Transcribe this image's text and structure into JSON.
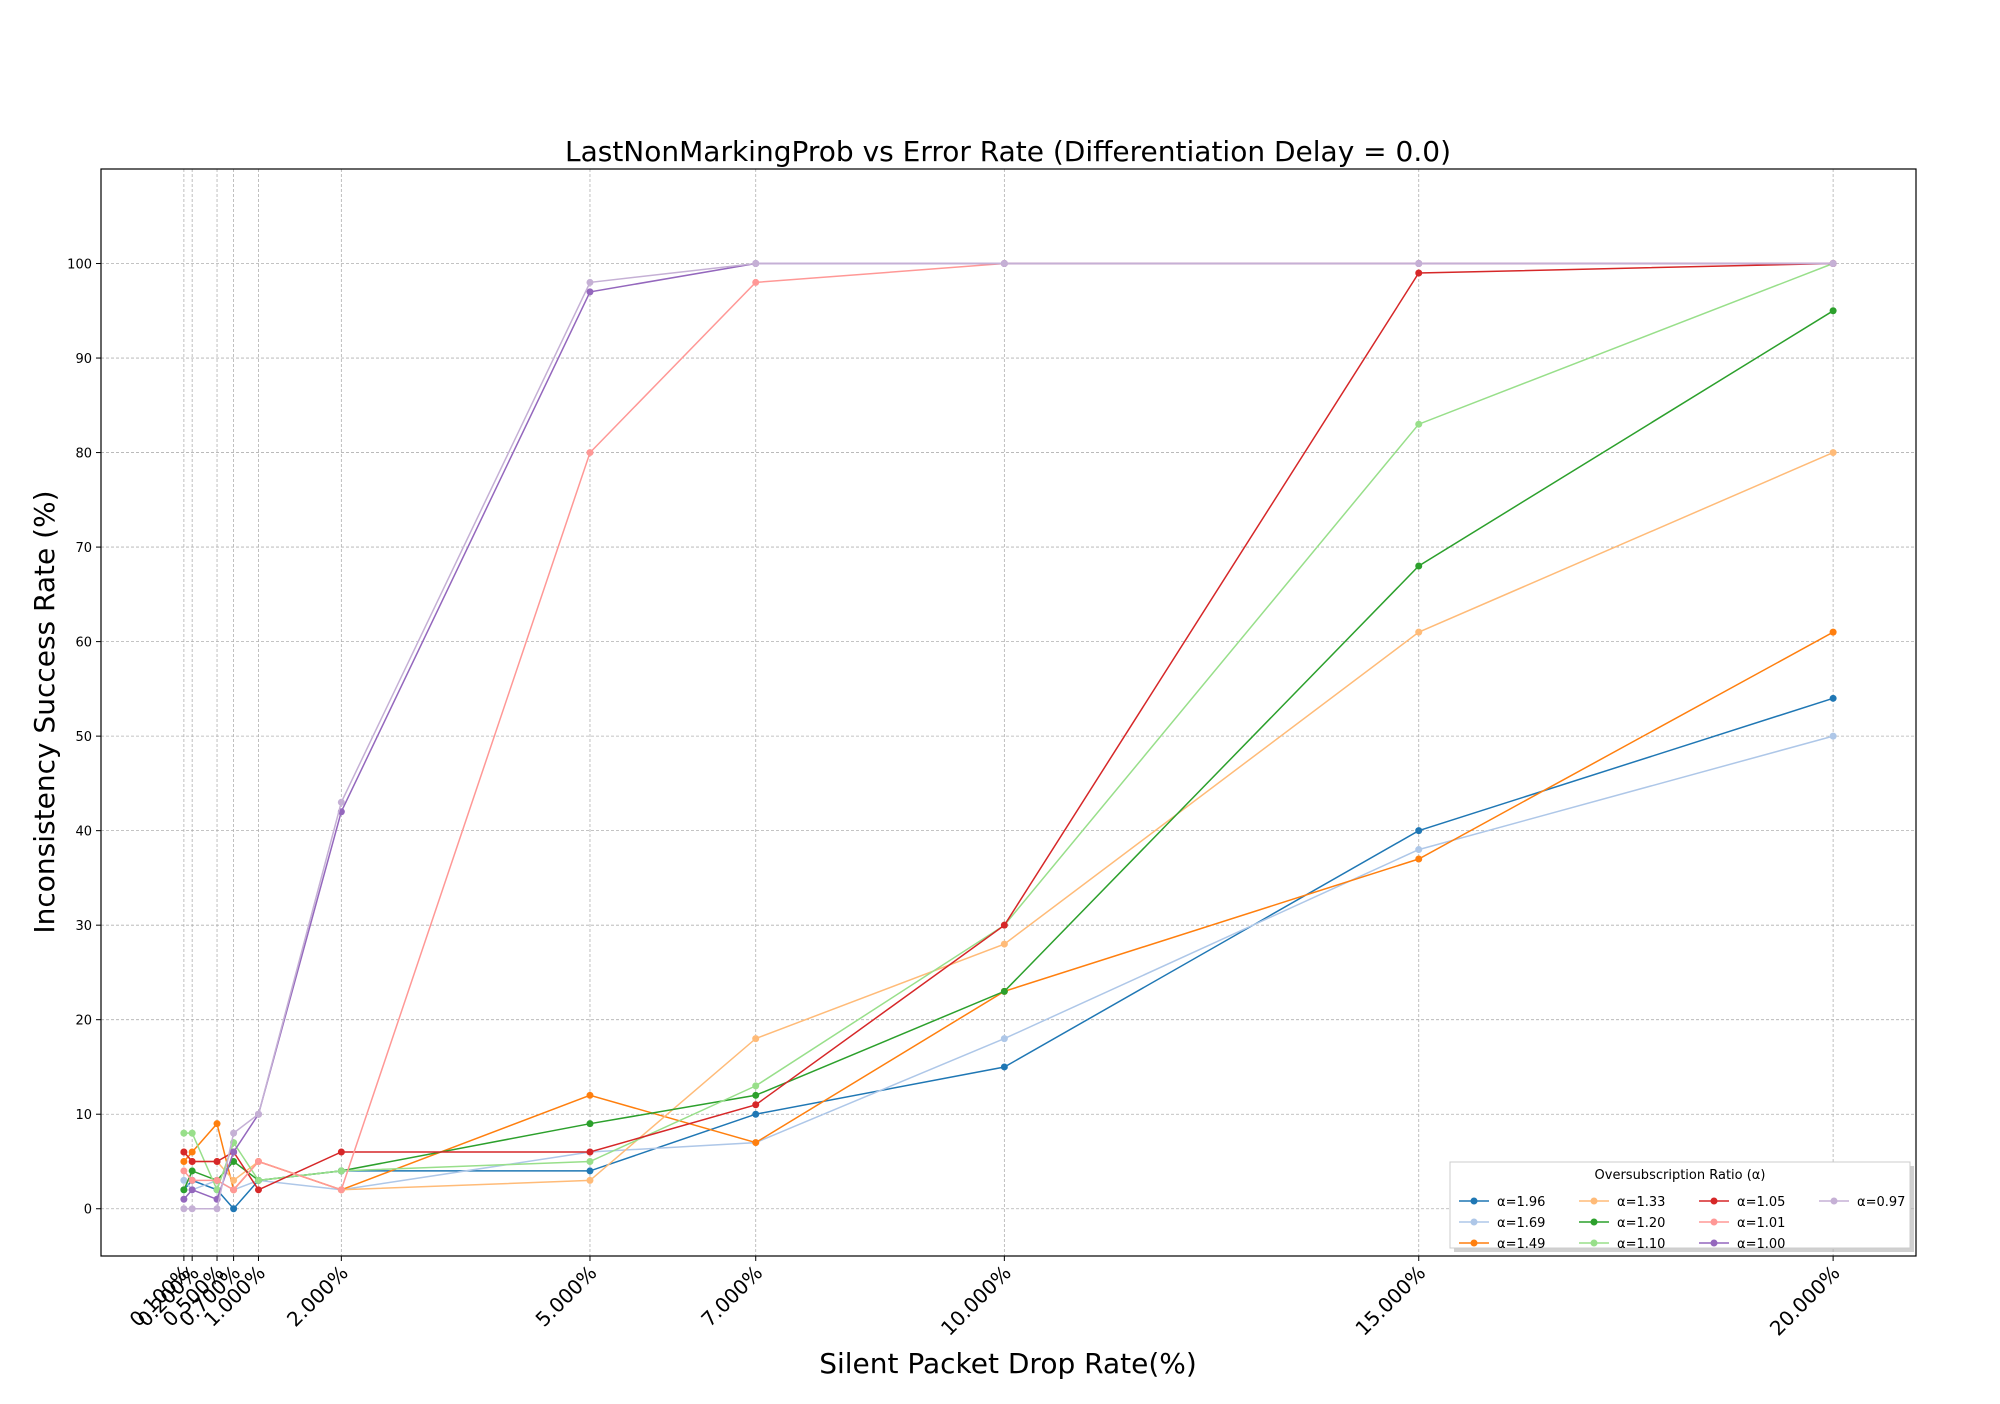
{
  "chart_data": {
    "type": "line",
    "title": "LastNonMarkingProb vs Error Rate (Differentiation Delay = 0.0)",
    "xlabel": "Silent Packet Drop Rate(%)",
    "ylabel": "Inconsistency Success Rate (%)",
    "x": [
      0.1,
      0.2,
      0.5,
      0.7,
      1.0,
      2.0,
      5.0,
      7.0,
      10.0,
      15.0,
      20.0
    ],
    "x_tick_labels": [
      "0.100%",
      "0.200%",
      "0.500%",
      "0.700%",
      "1.000%",
      "2.000%",
      "5.000%",
      "7.000%",
      "10.000%",
      "15.000%",
      "20.000%"
    ],
    "xlim": [
      -0.9,
      21.0
    ],
    "ylim": [
      -5,
      110
    ],
    "y_ticks": [
      0,
      10,
      20,
      30,
      40,
      50,
      60,
      70,
      80,
      90,
      100
    ],
    "grid": true,
    "legend": {
      "title": "Oversubscription Ratio (α)",
      "placement": "lower-right"
    },
    "series": [
      {
        "name": "α=1.96",
        "color": "#1f77b4",
        "values": [
          2,
          3,
          2,
          0,
          3,
          4,
          4,
          10,
          15,
          40,
          54
        ]
      },
      {
        "name": "α=1.69",
        "color": "#aec7e8",
        "values": [
          3,
          2,
          3,
          2,
          3,
          2,
          6,
          7,
          18,
          38,
          50
        ]
      },
      {
        "name": "α=1.49",
        "color": "#ff7f0e",
        "values": [
          5,
          6,
          9,
          2,
          5,
          2,
          12,
          7,
          23,
          37,
          61
        ]
      },
      {
        "name": "α=1.33",
        "color": "#ffbb78",
        "values": [
          6,
          5,
          5,
          3,
          5,
          2,
          3,
          18,
          28,
          61,
          80
        ]
      },
      {
        "name": "α=1.20",
        "color": "#2ca02c",
        "values": [
          2,
          4,
          3,
          5,
          3,
          4,
          9,
          12,
          23,
          68,
          95
        ]
      },
      {
        "name": "α=1.10",
        "color": "#98df8a",
        "values": [
          8,
          8,
          2,
          7,
          3,
          4,
          5,
          13,
          30,
          83,
          100
        ]
      },
      {
        "name": "α=1.05",
        "color": "#d62728",
        "values": [
          6,
          5,
          5,
          6,
          2,
          6,
          6,
          11,
          30,
          99,
          100
        ]
      },
      {
        "name": "α=1.01",
        "color": "#ff9896",
        "values": [
          4,
          3,
          3,
          2,
          5,
          2,
          80,
          98,
          100,
          100,
          100
        ]
      },
      {
        "name": "α=1.00",
        "color": "#9467bd",
        "values": [
          1,
          2,
          1,
          6,
          10,
          42,
          97,
          100,
          100,
          100,
          100
        ]
      },
      {
        "name": "α=0.97",
        "color": "#c5b0d5",
        "values": [
          0,
          0,
          0,
          8,
          10,
          43,
          98,
          100,
          100,
          100,
          100
        ]
      }
    ]
  }
}
